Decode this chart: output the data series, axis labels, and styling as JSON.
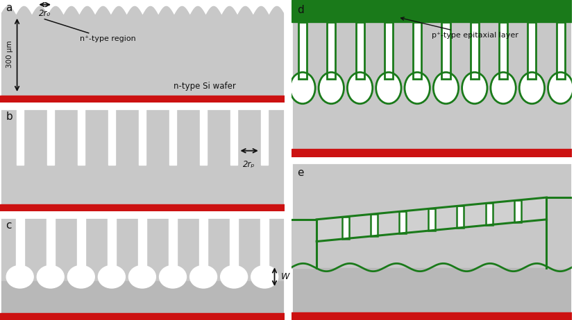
{
  "bg_gray": "#c8c8c8",
  "bg_gray2": "#b8b8b8",
  "bg_gray3": "#d0d0d0",
  "white": "#ffffff",
  "red_color": "#cc1111",
  "green_color": "#1a7a1a",
  "black": "#111111",
  "fig_bg": "#ffffff",
  "panel_labels": [
    "a",
    "b",
    "c",
    "d",
    "e"
  ],
  "label_300um": "300 μm",
  "label_2r0": "2r₀",
  "label_2rp": "2rₚ",
  "label_W": "W",
  "label_ntype_region": "n⁺-type region",
  "label_ntype_wafer": "n-type Si wafer",
  "label_ptype_layer": "p⁺-type epitaxial layer"
}
